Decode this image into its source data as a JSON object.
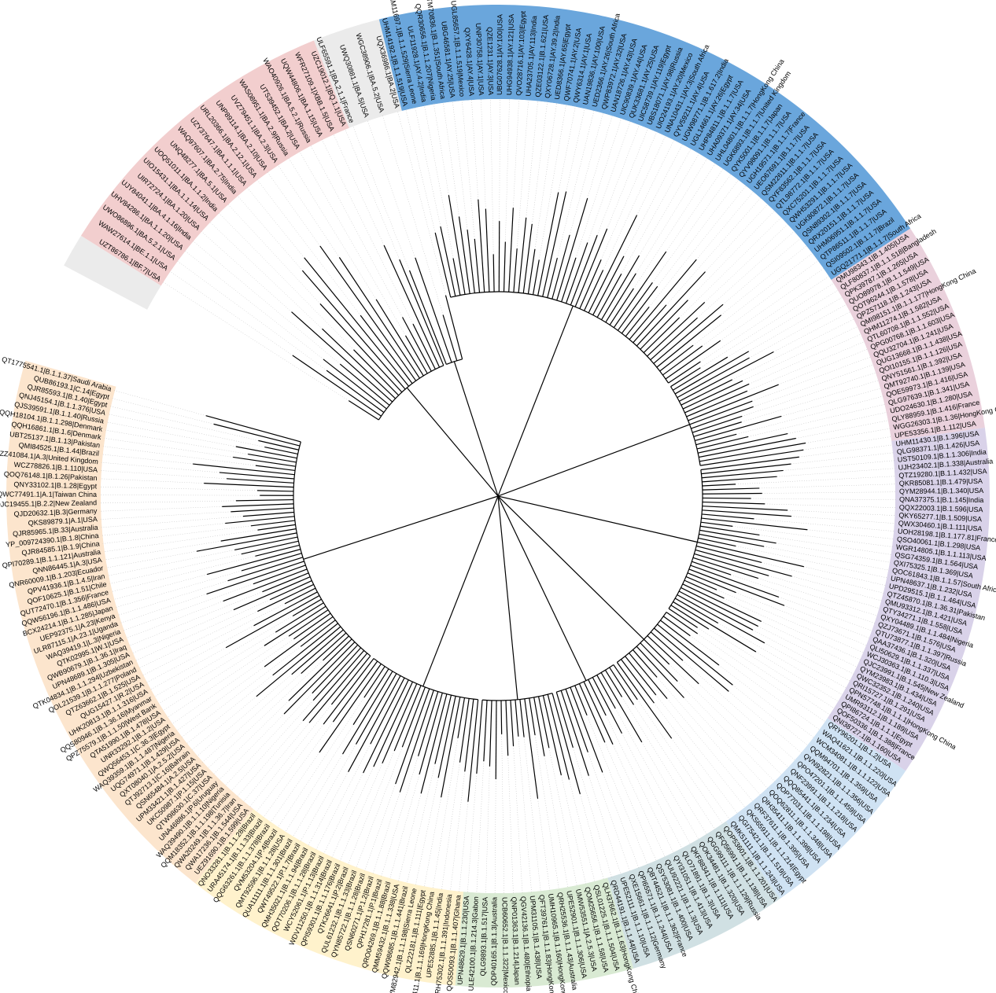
{
  "figure": {
    "type": "circular-phylogenetic-tree",
    "background": "#ffffff",
    "branch_color": "#000000",
    "guide_line_color": "#bbbbbb"
  },
  "clades": [
    {
      "id": "clade-gray-1",
      "color": "#ebebeb"
    },
    {
      "id": "clade-pink",
      "color": "#f2cece"
    },
    {
      "id": "clade-gray-2",
      "color": "#ebebeb"
    },
    {
      "id": "clade-blue",
      "color": "#6aa6dc"
    },
    {
      "id": "clade-mauve",
      "color": "#ead1dc"
    },
    {
      "id": "clade-lavender",
      "color": "#d9d2e9"
    },
    {
      "id": "clade-lightblue",
      "color": "#cfe2f3"
    },
    {
      "id": "clade-slate",
      "color": "#d0e0e3"
    },
    {
      "id": "clade-green",
      "color": "#d9ead3"
    },
    {
      "id": "clade-yellow",
      "color": "#fff2cc"
    },
    {
      "id": "clade-orange",
      "color": "#fce5cd"
    }
  ],
  "leaves": {
    "blue": [
      "UHM14192.1|B.1.1.519|USA",
      "UHM11697.1|B.1.1.529|Sierra Leone",
      "ULF11928.1|AY.4.2|India",
      "QQR30656.1|B.1.1.207|Nigeria",
      "QTM70836.1|B.1.351|South Africa",
      "UBG46581.1|AY.25|USA",
      "UGL85657.1|B.1.1.519|Mexico",
      "QXY6428.1|AY.4|USA",
      "UNP30758.1|AY.1|USA",
      "QZE1231.1|AY.3|USA",
      "UBG07628.1|AY.100|USA",
      "UHG94938.1|AY.121|USA",
      "QVO28716.1|AY.103|Egypt",
      "UHA23705.1|AY.113|India",
      "QZE03122.1|B.1.621|USA",
      "QXY06728.1|AY.39.2|India",
      "UED8366.1|AY.65|Egypt",
      "QWF70741.1|AY.2|USA",
      "QWY6314.1|AY.1|USA",
      "UAN19836.1|AY.100|USA",
      "UED2366.1|AY.26|South Africa",
      "QWP83972.1|AY.32|USA",
      "UAN18726.1|AY.43|USA",
      "UIC90839.1|AY.44|USA",
      "QUK33681.1|AY.25|USA",
      "UIC58739.1|AY.119|Egypt",
      "UBS18071.1|AY.98|Russia",
      "UIO24193.1|AY.20|Mexico",
      "UNA10431.1|AY.3|South Africa",
      "QYV59211.1|AY.4|USA",
      "UGW98771.1|B.1.617.2|India",
      "UGL14661.1|AY.26|Egypt",
      "UHP84811.1|B.1.1.7|USA",
      "UHA09371.1|AY.34|USA",
      "UHL04801.1|B.1.1.7|HongKong China",
      "UGK6893.1|B.1.1.7|United Kingdom",
      "QYK5001.1|B.1.1.7|Japan",
      "QYV98091.1|B.1.1.7|USA",
      "UGH19571.1|B.1.1.7|France",
      "UEO67691.1|B.1.1.7|USA",
      "QSM22611.1|B.1.1.7|USA",
      "QYF83562.1|B.1.1.7|USA",
      "QTL98772.1|B.1.1.7|USA",
      "QXC75201.1|B.1.1.7|USA",
      "QWH53291.1|B.1.1.7|USA",
      "UGK80872.1|B.1.1.7|USA",
      "QSN89302.1|B.1.1.7|USA",
      "QRX20151.1|B.1.1.7|USA",
      "UHM06951.1|B.1.1.7|USA",
      "QTP86511.1|B.1.1.7|USA",
      "QSI09502.1|B.1.1.7|Brazil",
      "UGQ21771.1|B.1.1.7|South Africa"
    ],
    "mauve": [
      "QMU98343.1|B.1.405|USA",
      "QLF80837.1|B.1.1.518|Bangladesh",
      "QPK39787.1|B.1.265|USA",
      "QUO89978.1|B.1.1.549|USA",
      "QOT96244.1|B.1.578|USA",
      "QPZ57118.1|B.1.243|USA",
      "QMI98151.1|B.1.1.177|HongKong China",
      "QHM11274.1|B.1.582|USA",
      "QTL60708.1|B.1.1.552|USA",
      "QPG00768.1|B.1.1.603|USA",
      "QQU32704.1|B.1.241|USA",
      "QUG13668.1|B.1.1.438|USA",
      "QOI10155.1|B.1.1.126|USA",
      "QNY51561.1|B.1.392|USA",
      "QMT92740.1|B.1.139|USA",
      "QOE59973.1|B.1.416|USA",
      "QLG97639.1|B.1.341|USA",
      "UDO24630.1|B.1.280|USA",
      "QLY88959.1|B.1.416|France",
      "WGG26303.1|B.1.36|HongKong China",
      "UPE53356.1|B.1.112|USA"
    ],
    "lavender": [
      "UHM11430.1|B.1.396|USA",
      "QLG98371.1|B.1.426|USA",
      "UST50109.1|B.1.1.306|India",
      "UJH23402.1|B.1.338|Australia",
      "QTZ19280.1|B.1.1.432|USA",
      "QKR85081.1|B.1.479|USA",
      "QYM28944.1|B.1.340|USA",
      "QNA37375.1|B.1.145|India",
      "QQX22003.1|B.1.596|USA",
      "QKY65277.1|B.1.509|USA",
      "QWX30460.1|B.1.111|USA",
      "UOH28198.1|B.1.177.81|France",
      "QSO40061.1|B.1.298|USA",
      "WGR14805.1|B.1.1.113|USA",
      "QSG74359.1|B.1.564|USA",
      "QXI75325.1|B.1.369|USA",
      "QOC61843.1|B.1.1.57|South Africa",
      "UPN48637.1|B.1.232|USA",
      "UPD29515.1|B.1.1.464|USA",
      "QTZ45870.1|B.1.36.31|Pakistan",
      "QMU93312.1|B.1.421|USA",
      "QTY34271.1|B.1.558|USA",
      "QXY04489.1|B.1.1.484|Nigeria",
      "QZJ73671.1|B.1.576|USA",
      "QTU73877.1|B.1.1.397|Russia",
      "QAA37436.1|B.1.320|USA",
      "QLI50629.1|B.1.1.337|USA",
      "WCJ30363.1|B.1.110.3|USA",
      "QJC23991.1|B.1.545|New Zealand",
      "QYM23983.1|B.1.434|USA",
      "QWC32352.1|B.1.240|USA",
      "QRI15727.1|B.1.291|USA",
      "QPN57748.1|B.1.1.1|HongKong China",
      "UMR93112.1|B.1.189|USA",
      "QPI86724.1|B.1.1.1|Egypt",
      "QOF50336.1|B.1.388|France",
      "QNI38727.1|B.1.160|USA"
    ],
    "lightblue": [
      "QRY96201.1|B.1.2|USA",
      "WAQ41621.1|B.1.1.220|USA",
      "WCM34081.1|B.1.1.122|USA",
      "QQM94701.1|B.1.359|USA",
      "QVN92821.1|B.1.1.356|USA",
      "QPO47201.1|B.1.1.459|USA",
      "QNF23991.1|B.1.1.218|USA",
      "QQQ85441.1|B.1.234|USA",
      "QOP77031.1|B.1.1.198|USA",
      "QOQ62811.1|B.1.1.348|USA",
      "QIH35411.1|B.1.1.398|USA",
      "QRF37611.1|B.1.395|USA",
      "QKS65911.1|B.1.1.214|Egypt",
      "QGI75421.1|B.1.1.519|USA",
      "QMK51111.1|B.1.1.243|USA"
    ],
    "slate": [
      "QOP53601.1|B.1.1.201|USA",
      "QFQ56991.1|B.1.1.138|USA",
      "QGG99111.1|B.1.1.129|Russia",
      "QOK34481.1|B.1.320|USA",
      "QKF88341.1|B.1.111|USA",
      "QLO71891.1|B.1.3|USA",
      "QYI31051.1|B.1.413|USA",
      "QUU92221.1|B.1.1.3|USA",
      "QSY53081.1|B.1.400|USA",
      "QBT44521.1|B.1.1.362|France",
      "QPI65571.1|B.1.1.244|USA",
      "QXE15661.1|B.1.1.12|Germany",
      "UPE52111.1|B.1.1.10|USA",
      "QRD44191.1|B.1.1.44|USA"
    ],
    "green": [
      "QLH37662.1|B.1.1.63|HongKong China",
      "QSL01225.1|B.1.1.504|USA",
      "QOM25656.1|B.1.1.58|USA",
      "UMW53551.1|A.2.5.3|USA",
      "UPE52901.1|B.1.1.306|USA",
      "QRH25536.1|B.1.1.43|Australia",
      "UMH10965.1|B.1.160|HongKong China",
      "QFT39761.1|B.1.1.83|HongKong China",
      "UPM31105.1|B.1.438|USA",
      "QGV42136.1|B.1.480|Ethiopia",
      "QNP01363.1|B.1.214|Japan",
      "UCB60652.1|B.1.1.322|Mexico",
      "QDP40165.1|B.1.3|Australia",
      "QLG9893.1|B.1.517|USA",
      "ULE42100.1|B.1.214.3|Gabon",
      "UPN48629.1|B.1.1.230|USA"
    ],
    "yellow": [
      "QOS50093.1|B.1.1.407|Ghana",
      "QRH75302.1|B.1.1.391|Indonesia",
      "UPE52885.1|B.1.1.45|India",
      "QXL35411.1|B.1.1.169|HongKong China",
      "QLZ22181.1|B.1.111|Egypt",
      "QVM82942.1|B.1.1.198|Sierra Leone",
      "QQW98685.1|B.1.1.441|Brazil",
      "QMM59432.1|B.1.1.338|USA",
      "QRO04269.1|B.1.1.88|Brazil",
      "QPH17281.1|P.1|Brazil",
      "QSN60271.1|P.1.2|Brazil",
      "QYN85722.1|B.1.1.28|Brazil",
      "QUL61232.1|B.1.1.33|Brazil",
      "QTK26641.1|P.2|Brazil",
      "QPI59301.1|B.1.1.176|Brazil",
      "WDV11250.1|B.1.1.314|Brazil",
      "WCY52061.1|P.1.13|Brazil",
      "QOT70206.1|B.1.1.28|Brazil",
      "QMH35021.1|B.1.1.94|Brazil",
      "QWT49522.1|P.1.7|Brazil",
      "QUA11111.1|B.1.1.301|Brazil",
      "QMT92596.1|B.1.1.28|USA",
      "QVM53204.1|P.4|Brazil",
      "QQG63261.1|B.1.1.378|Brazil",
      "URA45174.1|B.1.1.33|Brazil",
      "QNO33281.1|B.1.1.28|Brazil"
    ],
    "orange": [
      "UEZ91690.1|B.1.599|USA",
      "QWA17236.1|B.1.544|USA",
      "QWA20249.1|B.1.1.36.7|Iran",
      "QQM18352.1|B.1.1.198|Tunisia",
      "WAQ39490.1|B.1.1.10|Nigeria",
      "UNA46886.1|P.6|Uruguay",
      "QTW98630.1|C.37|USA",
      "UKC50987.1|P.1.15|USA",
      "UPM33421.1|B.1.427|USA",
      "QSN65484.1|A.2.5|USA",
      "QTJ92713.1|C.16|Bahrain",
      "QXT08040.1|A.2.5.2|USA",
      "UQG74971.1|B.1.429|USA",
      "WAQ39359.1|B.1.1.487|Nigeria",
      "QWQ56453.1|C.36.3|Egypt",
      "UNR33292.1|B.1.2|USA",
      "QTA51990.1|B.1.478|USA",
      "QPZ75579.1|B.1.1.50|West Bank",
      "QQS80946.1|B.1.36.16|Myanmar",
      "UHK20813.1|B.1.1.316|USA",
      "QUG15427.1|R.2|USA",
      "QTZ63662.1|B.1.525|USA",
      "QOL21539.1|B.1.1.277|Poland",
      "QTK04834.1|B.1.1.294|Uzbekistan",
      "UPN48689.1|B.1.305|USA",
      "QWB90679.1|B.1.36.1|Iraq",
      "QTK02995.1|W.1|USA",
      "WAQ39419.1|L.3|Nigeria",
      "ULR87115.1|A.23.1|Uganda",
      "UEP92375.1|A.23|Kenya",
      "BCX24214.1|B.1.1.285|Japan",
      "QQW56196.1|B.1.1.486|USA",
      "QUT72470.1|B.1.356|France",
      "QOF10625.1|B.1.51|Chile",
      "QPV41936.1|B.1.4.5|Iran",
      "QNR60009.1|B.1.203|Ecuador",
      "QNN86445.1|A.3|USA",
      "QPI70289.1|B.1.1.121|Australia",
      "QJR84585.1|B.1.9|China",
      "YP_009724390.1|B.1.8|China",
      "QJR85965.1|B.33|Australia",
      "QKS89879.1|A.1|USA",
      "QJD20632.1|B.3|Germany",
      "QJC19455.1|B.2.2|New Zealand",
      "QWC77491.1|A.1|Taiwan China",
      "QNY33102.1|B.1.28|Egypt",
      "QOQ76148.1|B.1.26|Pakistan",
      "WCZ78826.1|B.1.110|USA",
      "QZZ41084.1|A.3|United Kingdom",
      "QMI84525.1|B.1.44|Brazil",
      "UBT25137.1|B.1.13|Pakistan",
      "QQH16861.1|B.1.6|Denmark",
      "QQH18104.1|B.1.1.298|Denmark",
      "QJS39591.1|B.1.1.40|Russia",
      "QNJ45154.1|B.1.1.376|USA",
      "QJR85593.1|B.1.40|Egypt",
      "QUB86193.1|C.14|Egypt",
      "QT1775541.1|B.1.1.37|Saudi Arabia"
    ],
    "pink": [
      "UZT86786.1|BF.7|USA",
      "WAW27614.1|BE.1.1|USA",
      "UWO86896.1|BA.5.2.1|USA",
      "UHV84286.1|BA.1.1.20|USA",
      "UJY84041.1|BA.4.1.16|India",
      "UIR72724.1|BA.1.20|USA",
      "UIO15431.1|BA.1.1.14|USA",
      "UOQ51011.1|BA.1.1.2|India",
      "UNQ48277.1|BA.5.1|USA",
      "WAQ97607.1|BA.2.75|India",
      "UZY37647.1|BA.1.1.1|USA",
      "URL20366.1|BA.2.12.1|USA",
      "UNP89114.1|BA.2.10|USA",
      "UVZ79451.1|BA.2.3|USA",
      "WAS08951.1|BA.2.9|Russia",
      "UTS39452.1|BA.2|USA",
      "WAO40926.1|BA.5.2.1|Russia",
      "UQW44806.1|BA.1.15|USA",
      "WFR27109.1|XBB.1.5|USA",
      "UZC19012.1|BQ.1.1|USA"
    ],
    "gray-2": [
      "ULF65591.1|BA.2.1.1|France",
      "UWQ30881.1|BA.5|USA",
      "WGC38906.1|BA.5.2|USA",
      "UQX36986.1|BA.2|USA"
    ]
  }
}
